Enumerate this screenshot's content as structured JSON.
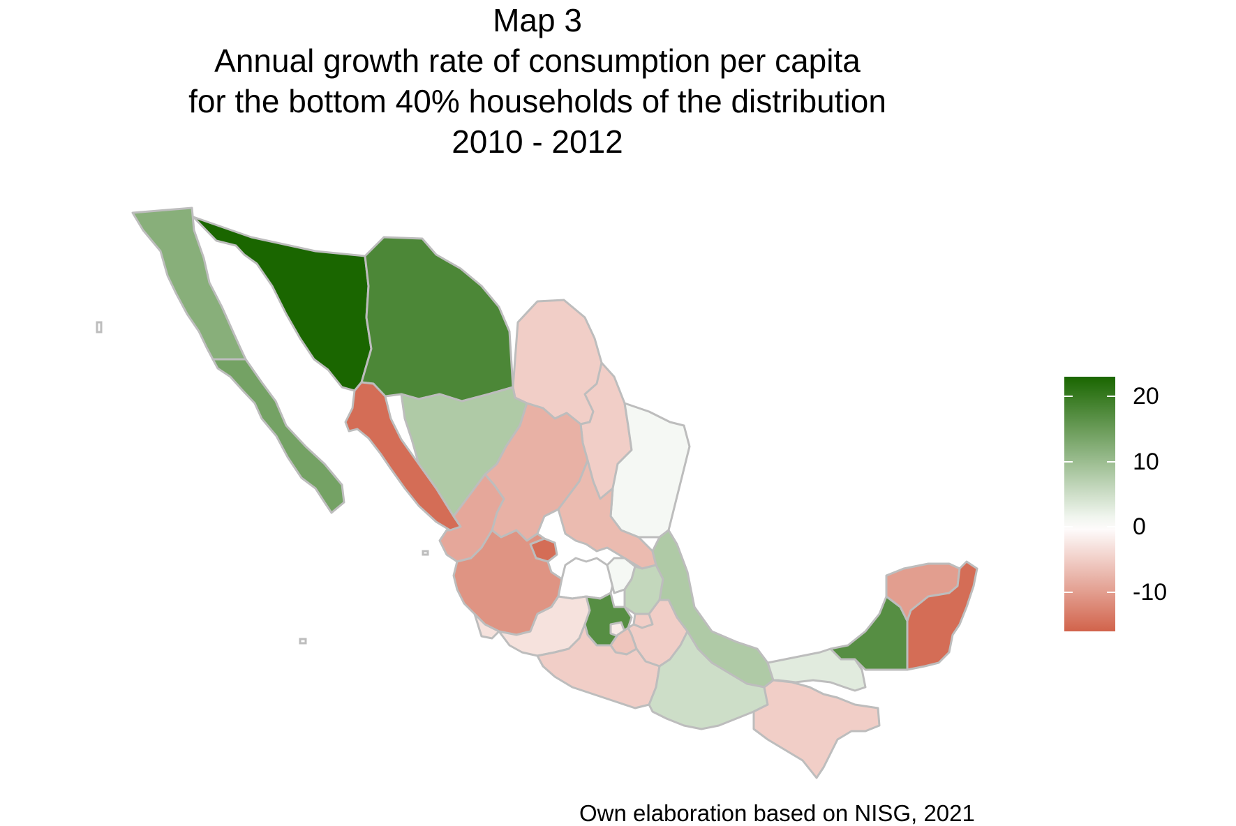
{
  "title": {
    "lines": [
      "Map 3",
      "Annual growth rate of consumption per capita",
      "for the bottom 40% households of the distribution",
      "2010 - 2012"
    ]
  },
  "caption": "Own elaboration based on NISG, 2021",
  "legend": {
    "min": -16,
    "max": 23,
    "ticks": [
      {
        "value": 20,
        "label": "20"
      },
      {
        "value": 10,
        "label": "10"
      },
      {
        "value": 0,
        "label": "0"
      },
      {
        "value": -10,
        "label": "-10"
      }
    ],
    "colors": {
      "high": "#1a6600",
      "mid": "#ffffff",
      "low": "#d1634b"
    }
  },
  "chart_data": {
    "type": "choropleth",
    "region": "Mexico",
    "unit": "annual growth rate (%)",
    "states": [
      {
        "name": "Baja California",
        "value": 12
      },
      {
        "name": "Baja California Sur",
        "value": 14
      },
      {
        "name": "Sonora",
        "value": 23
      },
      {
        "name": "Chihuahua",
        "value": 18
      },
      {
        "name": "Coahuila",
        "value": -5
      },
      {
        "name": "Nuevo León",
        "value": -5
      },
      {
        "name": "Tamaulipas",
        "value": 1
      },
      {
        "name": "Sinaloa",
        "value": -15
      },
      {
        "name": "Durango",
        "value": 8
      },
      {
        "name": "Zacatecas",
        "value": -8
      },
      {
        "name": "San Luis Potosí",
        "value": -7
      },
      {
        "name": "Nayarit",
        "value": -9
      },
      {
        "name": "Aguascalientes",
        "value": -15
      },
      {
        "name": "Jalisco",
        "value": -11
      },
      {
        "name": "Guanajuato",
        "value": 0
      },
      {
        "name": "Querétaro",
        "value": 1
      },
      {
        "name": "Hidalgo",
        "value": 6
      },
      {
        "name": "Veracruz",
        "value": 8
      },
      {
        "name": "Colima",
        "value": -3
      },
      {
        "name": "Michoacán",
        "value": -3
      },
      {
        "name": "Estado de México",
        "value": 17
      },
      {
        "name": "Ciudad de México",
        "value": -2
      },
      {
        "name": "Tlaxcala",
        "value": -5
      },
      {
        "name": "Puebla",
        "value": -5
      },
      {
        "name": "Morelos",
        "value": -6
      },
      {
        "name": "Guerrero",
        "value": -5
      },
      {
        "name": "Oaxaca",
        "value": 5
      },
      {
        "name": "Chiapas",
        "value": -5
      },
      {
        "name": "Tabasco",
        "value": 3
      },
      {
        "name": "Campeche",
        "value": 17
      },
      {
        "name": "Yucatán",
        "value": -10
      },
      {
        "name": "Quintana Roo",
        "value": -15
      }
    ]
  }
}
